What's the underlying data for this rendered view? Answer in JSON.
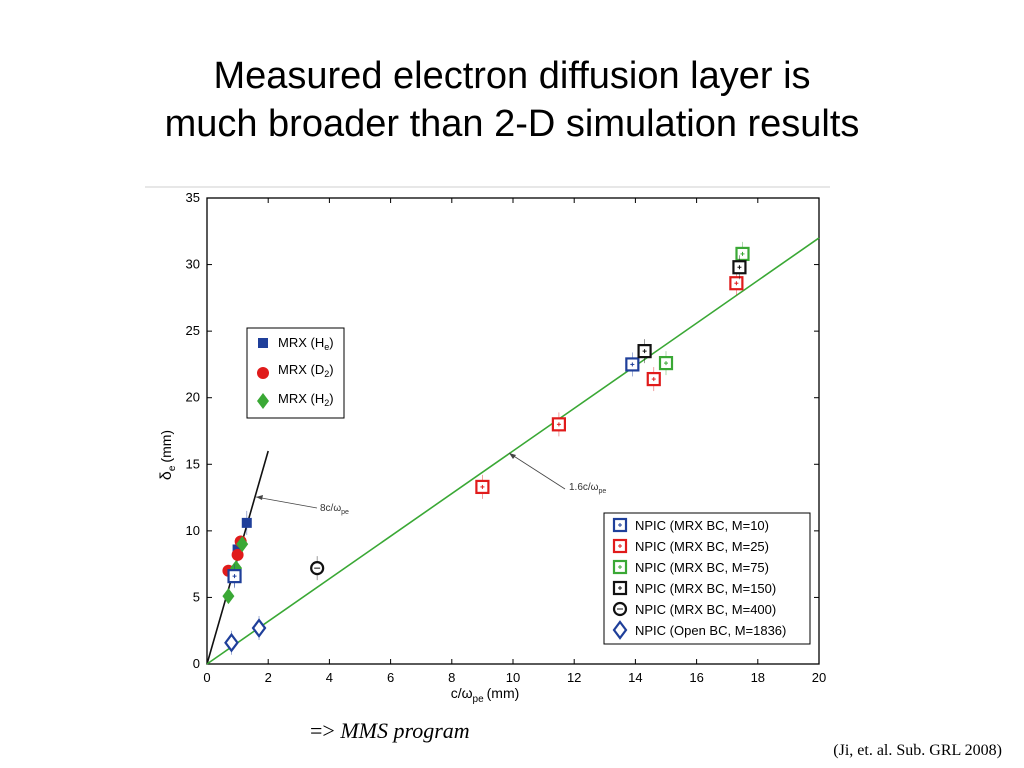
{
  "slide": {
    "title_line1": "Measured electron diffusion layer is",
    "title_line2": "much broader than 2-D simulation results",
    "note_arrow": "=>",
    "note_text": "MMS program",
    "citation": "(Ji, et. al. Sub. GRL 2008)"
  },
  "chart_data": {
    "type": "scatter",
    "xlabel_main": "c/ω",
    "xlabel_sub": "pe",
    "xlabel_unit": "(mm)",
    "ylabel_main": "δ",
    "ylabel_sub": "e",
    "ylabel_unit": "(mm)",
    "xlim": [
      0,
      20
    ],
    "ylim": [
      0,
      35
    ],
    "x_ticks": [
      "0",
      "2",
      "4",
      "6",
      "8",
      "10",
      "12",
      "14",
      "16",
      "18",
      "20"
    ],
    "y_ticks": [
      "0",
      "5",
      "10",
      "15",
      "20",
      "25",
      "30",
      "35"
    ],
    "grid": false,
    "legend_upper": {
      "placement": "upper-left",
      "entries": [
        {
          "main": "MRX (H",
          "sub": "e",
          "tail": ")",
          "color": "#1f3f9a",
          "marker": "square-filled"
        },
        {
          "main": "MRX (D",
          "sub": "2",
          "tail": ")",
          "color": "#e01b1b",
          "marker": "circle-filled"
        },
        {
          "main": "MRX (H",
          "sub": "2",
          "tail": ")",
          "color": "#3aa835",
          "marker": "diamond-filled"
        }
      ]
    },
    "legend_lower": {
      "placement": "lower-right",
      "entries": [
        {
          "label": "NPIC (MRX BC, M=10)",
          "color": "#1f3f9a",
          "marker": "square-open"
        },
        {
          "label": "NPIC (MRX BC, M=25)",
          "color": "#e01b1b",
          "marker": "square-open"
        },
        {
          "label": "NPIC (MRX BC, M=75)",
          "color": "#3aa835",
          "marker": "square-open"
        },
        {
          "label": "NPIC (MRX BC, M=150)",
          "color": "#111111",
          "marker": "square-open"
        },
        {
          "label": "NPIC (MRX BC, M=400)",
          "color": "#111111",
          "marker": "circle-open"
        },
        {
          "label": "NPIC (Open BC, M=1836)",
          "color": "#1f3f9a",
          "marker": "diamond-open"
        }
      ]
    },
    "lines": [
      {
        "label_main": "8c/ω",
        "label_sub": "pe",
        "slope": 8,
        "x_end": 2.0,
        "color": "#111111"
      },
      {
        "label_main": "1.6c/ω",
        "label_sub": "pe",
        "slope": 1.6,
        "x_end": 20,
        "color": "#3aa835"
      }
    ],
    "series": [
      {
        "name": "MRX (He)",
        "color": "#1f3f9a",
        "marker": "square-filled",
        "points": [
          {
            "x": 0.9,
            "y": 6.7
          },
          {
            "x": 1.0,
            "y": 8.6
          },
          {
            "x": 1.3,
            "y": 10.6
          }
        ]
      },
      {
        "name": "MRX (D2)",
        "color": "#e01b1b",
        "marker": "circle-filled",
        "points": [
          {
            "x": 0.7,
            "y": 7.0
          },
          {
            "x": 1.0,
            "y": 8.2
          },
          {
            "x": 1.1,
            "y": 9.2
          }
        ]
      },
      {
        "name": "MRX (H2)",
        "color": "#3aa835",
        "marker": "diamond-filled",
        "points": [
          {
            "x": 0.7,
            "y": 5.1
          },
          {
            "x": 0.95,
            "y": 7.2
          },
          {
            "x": 1.15,
            "y": 9.0
          }
        ]
      },
      {
        "name": "NPIC (MRX BC, M=10)",
        "color": "#1f3f9a",
        "marker": "square-open",
        "points": [
          {
            "x": 13.9,
            "y": 22.5
          },
          {
            "x": 0.9,
            "y": 6.6
          }
        ]
      },
      {
        "name": "NPIC (MRX BC, M=25)",
        "color": "#e01b1b",
        "marker": "square-open",
        "points": [
          {
            "x": 9.0,
            "y": 13.3
          },
          {
            "x": 11.5,
            "y": 18.0
          },
          {
            "x": 14.6,
            "y": 21.4
          },
          {
            "x": 17.3,
            "y": 28.6
          }
        ]
      },
      {
        "name": "NPIC (MRX BC, M=75)",
        "color": "#3aa835",
        "marker": "square-open",
        "points": [
          {
            "x": 15.0,
            "y": 22.6
          },
          {
            "x": 17.5,
            "y": 30.8
          }
        ]
      },
      {
        "name": "NPIC (MRX BC, M=150)",
        "color": "#111111",
        "marker": "square-open",
        "points": [
          {
            "x": 14.3,
            "y": 23.5
          },
          {
            "x": 17.4,
            "y": 29.8
          }
        ]
      },
      {
        "name": "NPIC (MRX BC, M=400)",
        "color": "#111111",
        "marker": "circle-open",
        "points": [
          {
            "x": 3.6,
            "y": 7.2
          }
        ]
      },
      {
        "name": "NPIC (Open BC, M=1836)",
        "color": "#1f3f9a",
        "marker": "diamond-open",
        "points": [
          {
            "x": 0.8,
            "y": 1.6
          },
          {
            "x": 1.7,
            "y": 2.7
          }
        ]
      }
    ]
  }
}
